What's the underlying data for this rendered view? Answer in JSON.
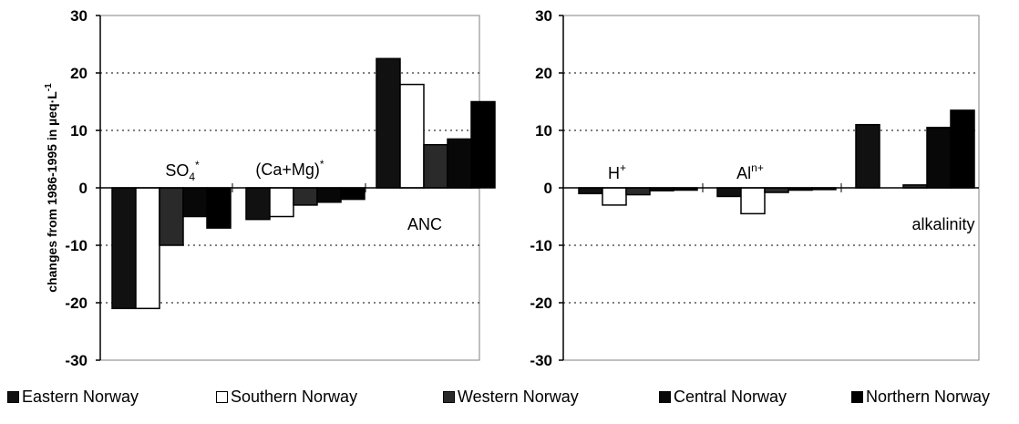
{
  "chart_data": [
    {
      "type": "bar",
      "ylabel_parts": [
        "changes from 1986-1995 in µeq·L",
        "-1"
      ],
      "ylim": [
        -30,
        30
      ],
      "yticks": [
        "30",
        "20",
        "10",
        "0",
        "-10",
        "-20",
        "-30"
      ],
      "grid": "dotted horizontal",
      "groups": [
        {
          "label": "SO4*",
          "label_base": "SO",
          "label_sub": "4",
          "label_sup": "*",
          "values": [
            -21,
            -21,
            -10,
            -5,
            -7
          ]
        },
        {
          "label": "(Ca+Mg)*",
          "label_base": "(Ca+Mg)",
          "label_sub": "",
          "label_sup": "*",
          "values": [
            -5.5,
            -5,
            -3,
            -2.5,
            -2
          ]
        },
        {
          "label": "ANC",
          "label_base": "ANC",
          "label_sub": "",
          "label_sup": "",
          "values": [
            22.5,
            18,
            7.5,
            8.5,
            15
          ]
        }
      ]
    },
    {
      "type": "bar",
      "ylim": [
        -30,
        30
      ],
      "yticks": [
        "30",
        "20",
        "10",
        "0",
        "-10",
        "-20",
        "-30"
      ],
      "grid": "dotted horizontal",
      "groups": [
        {
          "label": "H+",
          "label_base": "H",
          "label_sub": "",
          "label_sup": "+",
          "values": [
            -1,
            -3,
            -1.2,
            -0.5,
            -0.4
          ]
        },
        {
          "label": "Aln+",
          "label_base": "Al",
          "label_sub": "",
          "label_sup": "n+",
          "values": [
            -1.5,
            -4.5,
            -0.8,
            -0.4,
            -0.3
          ]
        },
        {
          "label": "alkalinity",
          "label_base": "alkalinity",
          "label_sub": "",
          "label_sup": "",
          "values": [
            11,
            0,
            0.5,
            10.5,
            13.5
          ]
        }
      ]
    }
  ],
  "legend": [
    {
      "name": "Eastern Norway",
      "color": "#111111"
    },
    {
      "name": "Southern Norway",
      "color": "#ffffff"
    },
    {
      "name": "Western Norway",
      "color": "#2a2a2a"
    },
    {
      "name": "Central Norway",
      "color": "#080808"
    },
    {
      "name": "Northern Norway",
      "color": "#000000"
    }
  ]
}
